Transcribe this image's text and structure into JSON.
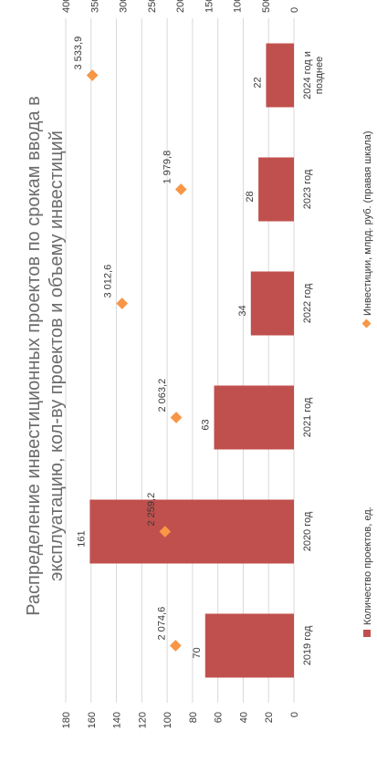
{
  "chart_data": {
    "type": "bar",
    "title_line1": "Распределение инвестиционных проектов по срокам ввода в",
    "title_line2": "эксплуатацию, кол-ву проектов и объему инвестиций",
    "categories": [
      "2019 год",
      "2020 год",
      "2021 год",
      "2022 год",
      "2023 год",
      "2024 год и позднее"
    ],
    "category_lines": [
      [
        "2019 год"
      ],
      [
        "2020 год"
      ],
      [
        "2021 год"
      ],
      [
        "2022 год"
      ],
      [
        "2023 год"
      ],
      [
        "2024 год и",
        "позднее"
      ]
    ],
    "series": [
      {
        "name": "Количество проектов, ед.",
        "kind": "bar",
        "axis": "left",
        "color": "#c0504d",
        "values": [
          70,
          161,
          63,
          34,
          28,
          22
        ],
        "labels": [
          "70",
          "161",
          "63",
          "34",
          "28",
          "22"
        ]
      },
      {
        "name": "Инвестиции, млрд. руб. (правая шкала)",
        "kind": "scatter",
        "axis": "right",
        "color": "#f79646",
        "values": [
          2074.6,
          2259.2,
          2063.2,
          3012.6,
          1979.8,
          3533.9
        ],
        "labels": [
          "2 074,6",
          "2 259,2",
          "2 063,2",
          "3 012,6",
          "1 979,8",
          "3 533,9"
        ]
      }
    ],
    "left_axis": {
      "min": 0,
      "max": 180,
      "ticks": [
        "0",
        "20",
        "40",
        "60",
        "80",
        "100",
        "120",
        "140",
        "160",
        "180"
      ]
    },
    "right_axis": {
      "min": 0,
      "max": 4000,
      "ticks": [
        "0",
        "500",
        "1000",
        "1500",
        "2000",
        "2500",
        "3000",
        "3500",
        "4000"
      ]
    },
    "grid": true,
    "legend_position": "bottom",
    "orientation": "rotated-90-ccw"
  }
}
